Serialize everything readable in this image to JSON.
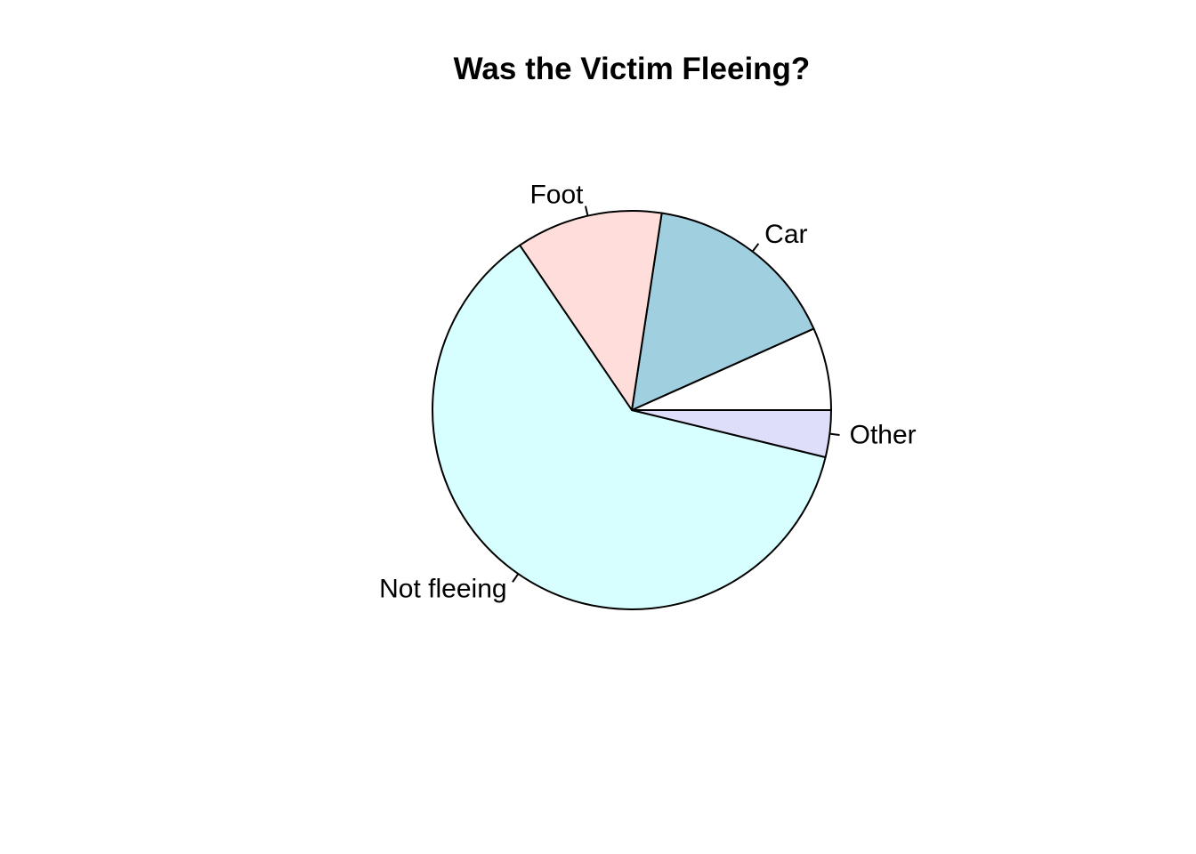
{
  "chart_data": {
    "type": "pie",
    "title": "Was the Victim Fleeing?",
    "start_angle_deg": 0,
    "direction": "counterclockwise",
    "slices": [
      {
        "label": "",
        "value": 67,
        "color": "#ffffff"
      },
      {
        "label": "Car",
        "value": 159,
        "color": "#a0cfe0"
      },
      {
        "label": "Foot",
        "value": 119,
        "color": "#ffdddb"
      },
      {
        "label": "Not fleeing",
        "value": 617,
        "color": "#d8ffff"
      },
      {
        "label": "Other",
        "value": 38,
        "color": "#dedefa"
      }
    ]
  }
}
